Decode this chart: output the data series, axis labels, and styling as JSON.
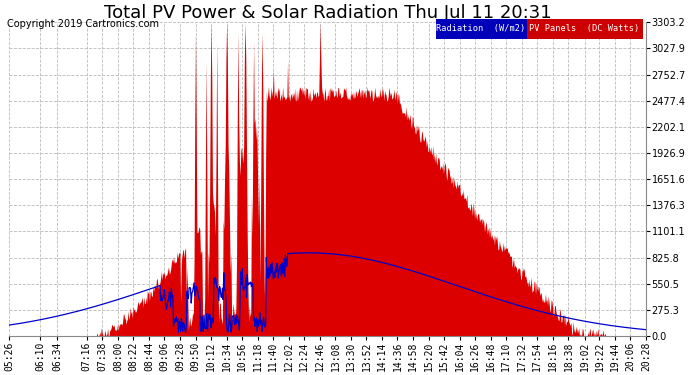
{
  "title": "Total PV Power & Solar Radiation Thu Jul 11 20:31",
  "copyright": "Copyright 2019 Cartronics.com",
  "legend_rad_label": "Radiation  (W/m2)",
  "legend_pv_label": "PV Panels  (DC Watts)",
  "legend_rad_color": "#0000bb",
  "legend_pv_color": "#cc0000",
  "ylabel_right": [
    "0.0",
    "275.3",
    "550.5",
    "825.8",
    "1101.1",
    "1376.3",
    "1651.6",
    "1926.9",
    "2202.1",
    "2477.4",
    "2752.7",
    "3027.9",
    "3303.2"
  ],
  "ymax": 3303.2,
  "ymin": 0.0,
  "background_color": "#ffffff",
  "plot_bg_color": "#ffffff",
  "grid_color": "#bbbbbb",
  "fill_color": "#dd0000",
  "line_color": "#0000cc",
  "title_fontsize": 13,
  "copyright_fontsize": 7,
  "tick_fontsize": 7,
  "xtick_labels": [
    "05:26",
    "06:10",
    "06:34",
    "07:16",
    "07:38",
    "08:00",
    "08:22",
    "08:44",
    "09:06",
    "09:28",
    "09:50",
    "10:12",
    "10:34",
    "10:56",
    "11:18",
    "11:40",
    "12:02",
    "12:24",
    "12:46",
    "13:08",
    "13:30",
    "13:52",
    "14:14",
    "14:36",
    "14:58",
    "15:20",
    "15:42",
    "16:04",
    "16:26",
    "16:48",
    "17:10",
    "17:32",
    "17:54",
    "18:16",
    "18:38",
    "19:02",
    "19:22",
    "19:44",
    "20:06",
    "20:28"
  ]
}
